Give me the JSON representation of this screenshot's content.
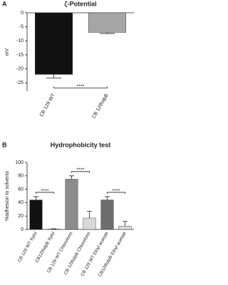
{
  "chart_data": [
    {
      "type": "bar",
      "panel_label": "A",
      "title": "ζ-Potential",
      "y_label": "mV",
      "categories": [
        "CB 129 WT",
        "CB 129\\slpB"
      ],
      "values": [
        -22,
        -7
      ],
      "errors": [
        1.3,
        0.4
      ],
      "colors": [
        "#111111",
        "#a6a6a6"
      ],
      "annotations": [
        "****"
      ],
      "ylim": [
        -28,
        0
      ],
      "yticks": [
        0,
        -5,
        -10,
        -15,
        -20,
        -25
      ],
      "grid": false
    },
    {
      "type": "bar",
      "panel_label": "B",
      "title": "Hydrophobicity test",
      "y_label": "%adhesion to solvents",
      "categories": [
        "CB 129 WT Xylol",
        "CB129\\slpB Xylol",
        "CB 129 WT Chloroform",
        "CB 129\\slpB Chloroform",
        "CB 129 WT Ethyl acetate",
        "CB129\\slpB Ethyl acetate"
      ],
      "values": [
        44,
        0.5,
        75,
        17,
        44,
        5
      ],
      "errors": [
        5,
        0.5,
        5,
        10,
        5,
        7
      ],
      "colors": [
        "#111111",
        "#d9d9d9",
        "#8c8c8c",
        "#d9d9d9",
        "#6e6e6e",
        "#d9d9d9"
      ],
      "annotations": [
        "****",
        "****",
        "****"
      ],
      "ylim": [
        0,
        100
      ],
      "yticks": [
        0,
        20,
        40,
        60,
        80,
        100
      ],
      "grid": false
    }
  ]
}
